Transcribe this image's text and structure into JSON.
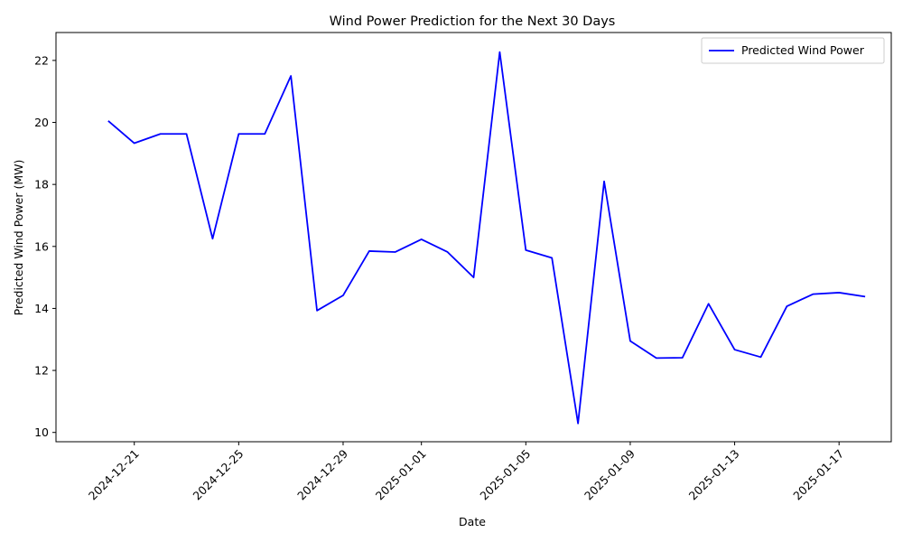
{
  "chart_data": {
    "type": "line",
    "title": "Wind Power Prediction for the Next 30 Days",
    "xlabel": "Date",
    "ylabel": "Predicted Wind Power (MW)",
    "x": [
      "2024-12-20",
      "2024-12-21",
      "2024-12-22",
      "2024-12-23",
      "2024-12-24",
      "2024-12-25",
      "2024-12-26",
      "2024-12-27",
      "2024-12-28",
      "2024-12-29",
      "2024-12-30",
      "2024-12-31",
      "2025-01-01",
      "2025-01-02",
      "2025-01-03",
      "2025-01-04",
      "2025-01-05",
      "2025-01-06",
      "2025-01-07",
      "2025-01-08",
      "2025-01-09",
      "2025-01-10",
      "2025-01-11",
      "2025-01-12",
      "2025-01-13",
      "2025-01-14",
      "2025-01-15",
      "2025-01-16",
      "2025-01-17",
      "2025-01-18"
    ],
    "series": [
      {
        "name": "Predicted Wind Power",
        "color": "#0000ff",
        "values": [
          20.05,
          19.33,
          19.63,
          19.63,
          16.25,
          19.63,
          19.63,
          21.5,
          13.93,
          14.42,
          15.85,
          15.82,
          16.23,
          15.82,
          15.0,
          22.27,
          15.88,
          15.63,
          10.29,
          18.1,
          12.95,
          12.4,
          12.41,
          14.15,
          12.67,
          12.43,
          14.07,
          14.46,
          14.51,
          14.38
        ]
      }
    ],
    "xticks": [
      "2024-12-21",
      "2024-12-25",
      "2024-12-29",
      "2025-01-01",
      "2025-01-05",
      "2025-01-09",
      "2025-01-13",
      "2025-01-17"
    ],
    "yticks": [
      10,
      12,
      14,
      16,
      18,
      20,
      22
    ],
    "ylim": [
      9.7,
      22.9
    ],
    "xlim": [
      "2024-12-18",
      "2025-01-19"
    ],
    "legend": {
      "placement": "top-right",
      "label": "Predicted Wind Power"
    },
    "grid": false
  }
}
